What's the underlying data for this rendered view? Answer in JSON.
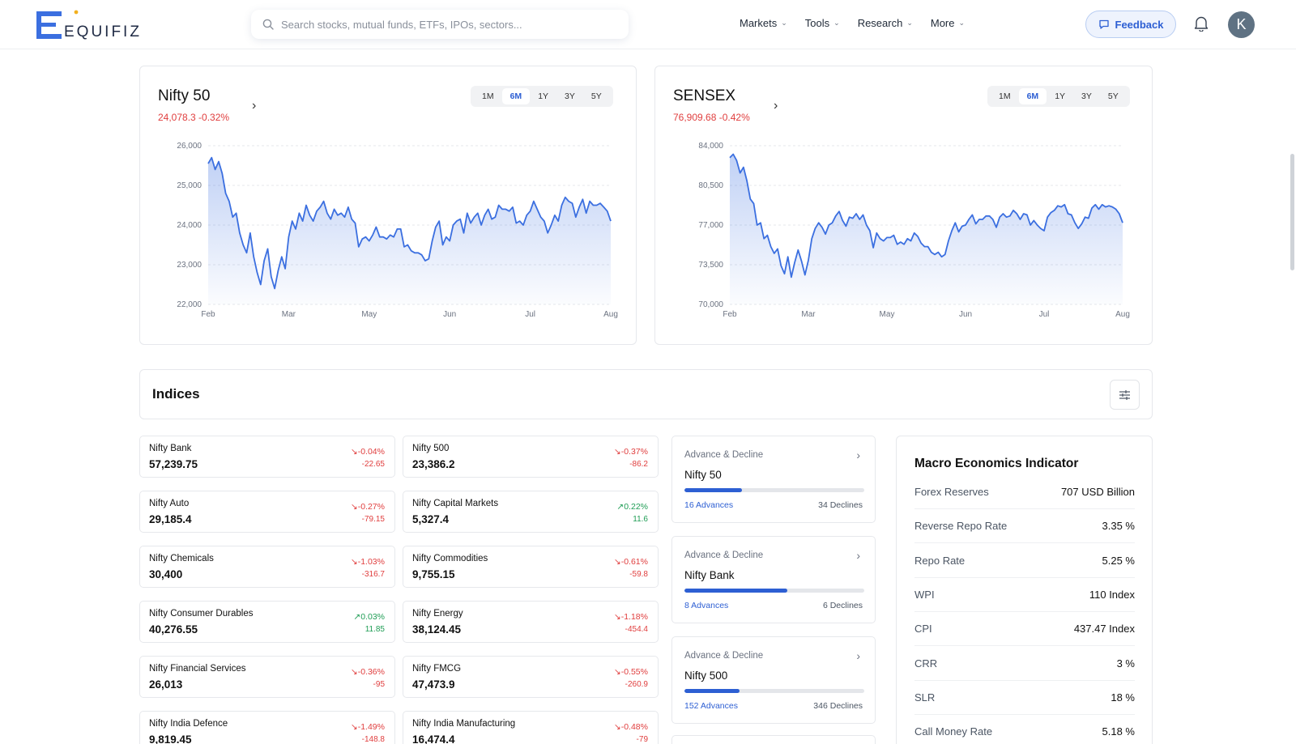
{
  "header": {
    "logo_text": "EQUIFIZ",
    "search_placeholder": "Search stocks, mutual funds, ETFs, IPOs, sectors...",
    "nav": [
      {
        "label": "Markets"
      },
      {
        "label": "Tools"
      },
      {
        "label": "Research"
      },
      {
        "label": "More"
      }
    ],
    "feedback_label": "Feedback",
    "avatar_initial": "K"
  },
  "charts": [
    {
      "title": "Nifty 50",
      "subtitle": "24,078.3 -0.32%",
      "timeframes": [
        "1M",
        "6M",
        "1Y",
        "3Y",
        "5Y"
      ],
      "active_timeframe": "6M",
      "chart_data": {
        "type": "area",
        "x_ticks": [
          "Feb",
          "Mar",
          "May",
          "Jun",
          "Jul",
          "Aug"
        ],
        "y_ticks": [
          "26,000",
          "25,000",
          "24,000",
          "23,000",
          "22,000"
        ],
        "ylim": [
          22000,
          26000
        ],
        "series": [
          {
            "values": [
              25550,
              25700,
              25400,
              25600,
              25300,
              24800,
              24600,
              24200,
              24300,
              23800,
              23500,
              23300,
              23800,
              23200,
              22800,
              22500,
              23100,
              23400,
              22700,
              22400,
              22850,
              23200,
              22900,
              23700,
              24100,
              23900,
              24300,
              24100,
              24500,
              24250,
              24100,
              24350,
              24450,
              24600,
              24300,
              24150,
              24400,
              24250,
              24300,
              24200,
              24450,
              24150,
              24050,
              23450,
              23650,
              23700,
              23600,
              23750,
              23950,
              23700,
              23700,
              23650,
              23750,
              23700,
              23900,
              23900,
              23450,
              23500,
              23350,
              23300,
              23300,
              23250,
              23100,
              23150,
              23600,
              23950,
              24100,
              23500,
              23700,
              23600,
              24000,
              24100,
              24150,
              23800,
              24300,
              24050,
              24200,
              24300,
              24000,
              24250,
              24400,
              24150,
              24200,
              24500,
              24400,
              24400,
              24350,
              24450,
              24050,
              24100,
              24000,
              24250,
              24350,
              24600,
              24400,
              24200,
              24100,
              23800,
              24000,
              24250,
              24100,
              24500,
              24700,
              24600,
              24550,
              24200,
              24450,
              24650,
              24300,
              24600,
              24500,
              24500,
              24550,
              24450,
              24350,
              24100
            ]
          }
        ]
      }
    },
    {
      "title": "SENSEX",
      "subtitle": "76,909.68 -0.42%",
      "timeframes": [
        "1M",
        "6M",
        "1Y",
        "3Y",
        "5Y"
      ],
      "active_timeframe": "6M",
      "chart_data": {
        "type": "area",
        "x_ticks": [
          "Feb",
          "Mar",
          "May",
          "Jun",
          "Jul",
          "Aug"
        ],
        "y_ticks": [
          "84,000",
          "80,500",
          "77,000",
          "73,500",
          "70,000"
        ],
        "ylim": [
          70000,
          84000
        ],
        "series": [
          {
            "values": [
              82950,
              83250,
              82700,
              81600,
              82100,
              80900,
              79300,
              78900,
              77000,
              77200,
              75800,
              76100,
              75100,
              74500,
              74900,
              73400,
              72700,
              74200,
              72400,
              73700,
              74800,
              73800,
              72600,
              73900,
              75800,
              76700,
              77200,
              76800,
              76200,
              77000,
              77200,
              77800,
              78200,
              77400,
              76900,
              77700,
              77600,
              78000,
              77500,
              77900,
              77000,
              76500,
              75000,
              76300,
              75800,
              75600,
              75900,
              75900,
              76100,
              75300,
              75500,
              75300,
              75800,
              75600,
              76300,
              76000,
              75400,
              75100,
              75100,
              74600,
              74400,
              74600,
              74200,
              74400,
              75600,
              76500,
              77200,
              76400,
              76900,
              77000,
              77500,
              77900,
              77100,
              77500,
              77500,
              77800,
              77800,
              77500,
              76800,
              77700,
              78000,
              77700,
              77800,
              78300,
              78000,
              77500,
              78000,
              77900,
              77000,
              77400,
              77000,
              76700,
              76500,
              77700,
              78100,
              78300,
              78700,
              78600,
              78800,
              78000,
              77900,
              77200,
              76700,
              77100,
              77700,
              77600,
              78500,
              78800,
              78400,
              78800,
              78600,
              78700,
              78600,
              78400,
              78000,
              77200
            ]
          }
        ]
      }
    }
  ],
  "indices": {
    "title": "Indices",
    "items": [
      {
        "name": "Nifty Bank",
        "value": "57,239.75",
        "pct": "-0.04%",
        "abs": "-22.65",
        "dir": "down"
      },
      {
        "name": "Nifty 500",
        "value": "23,386.2",
        "pct": "-0.37%",
        "abs": "-86.2",
        "dir": "down"
      },
      {
        "name": "Nifty Auto",
        "value": "29,185.4",
        "pct": "-0.27%",
        "abs": "-79.15",
        "dir": "down"
      },
      {
        "name": "Nifty Capital Markets",
        "value": "5,327.4",
        "pct": "0.22%",
        "abs": "11.6",
        "dir": "up"
      },
      {
        "name": "Nifty Chemicals",
        "value": "30,400",
        "pct": "-1.03%",
        "abs": "-316.7",
        "dir": "down"
      },
      {
        "name": "Nifty Commodities",
        "value": "9,755.15",
        "pct": "-0.61%",
        "abs": "-59.8",
        "dir": "down"
      },
      {
        "name": "Nifty Consumer Durables",
        "value": "40,276.55",
        "pct": "0.03%",
        "abs": "11.85",
        "dir": "up"
      },
      {
        "name": "Nifty Energy",
        "value": "38,124.45",
        "pct": "-1.18%",
        "abs": "-454.4",
        "dir": "down"
      },
      {
        "name": "Nifty Financial Services",
        "value": "26,013",
        "pct": "-0.36%",
        "abs": "-95",
        "dir": "down"
      },
      {
        "name": "Nifty FMCG",
        "value": "47,473.9",
        "pct": "-0.55%",
        "abs": "-260.9",
        "dir": "down"
      },
      {
        "name": "Nifty India Defence",
        "value": "9,819.45",
        "pct": "-1.49%",
        "abs": "-148.8",
        "dir": "down"
      },
      {
        "name": "Nifty India Manufacturing",
        "value": "16,474.4",
        "pct": "-0.48%",
        "abs": "-79",
        "dir": "down"
      }
    ]
  },
  "advance_decline": [
    {
      "label": "Advance & Decline",
      "title": "Nifty 50",
      "advances": "16 Advances",
      "declines": "34 Declines",
      "ratio": 0.32
    },
    {
      "label": "Advance & Decline",
      "title": "Nifty Bank",
      "advances": "8 Advances",
      "declines": "6 Declines",
      "ratio": 0.571
    },
    {
      "label": "Advance & Decline",
      "title": "Nifty 500",
      "advances": "152 Advances",
      "declines": "346 Declines",
      "ratio": 0.305
    }
  ],
  "macro": {
    "title": "Macro Economics Indicator",
    "rows": [
      {
        "key": "Forex Reserves",
        "value": "707 USD Billion"
      },
      {
        "key": "Reverse Repo Rate",
        "value": "3.35 %"
      },
      {
        "key": "Repo Rate",
        "value": "5.25 %"
      },
      {
        "key": "WPI",
        "value": "110 Index"
      },
      {
        "key": "CPI",
        "value": "437.47 Index"
      },
      {
        "key": "CRR",
        "value": "3 %"
      },
      {
        "key": "SLR",
        "value": "18 %"
      },
      {
        "key": "Call Money Rate",
        "value": "5.18 %"
      }
    ]
  },
  "colors": {
    "accent": "#2d5fd3",
    "negative": "#e03e3e",
    "positive": "#1f9d55",
    "line": "#3b6fe0"
  }
}
